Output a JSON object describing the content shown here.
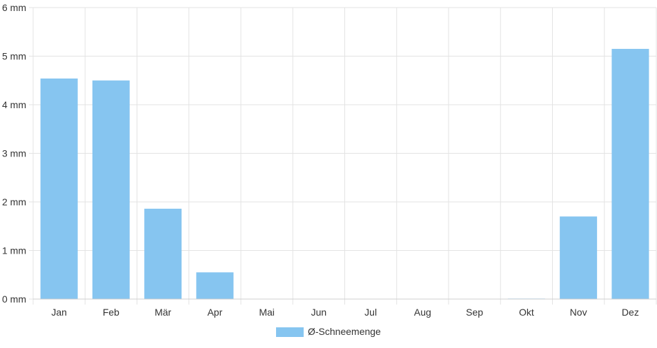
{
  "chart_data": {
    "type": "bar",
    "categories": [
      "Jan",
      "Feb",
      "Mär",
      "Apr",
      "Mai",
      "Jun",
      "Jul",
      "Aug",
      "Sep",
      "Okt",
      "Nov",
      "Dez"
    ],
    "series": [
      {
        "name": "Ø-Schneemenge",
        "values": [
          4.54,
          4.5,
          1.86,
          0.55,
          0,
          0,
          0,
          0,
          0,
          0.01,
          1.7,
          5.15
        ],
        "color": "#86c5f0"
      }
    ],
    "y_ticks": [
      "0 mm",
      "1 mm",
      "2 mm",
      "3 mm",
      "4 mm",
      "5 mm",
      "6 mm"
    ],
    "ylim": [
      0,
      6
    ],
    "grid": true,
    "legend": "bottom-center"
  }
}
